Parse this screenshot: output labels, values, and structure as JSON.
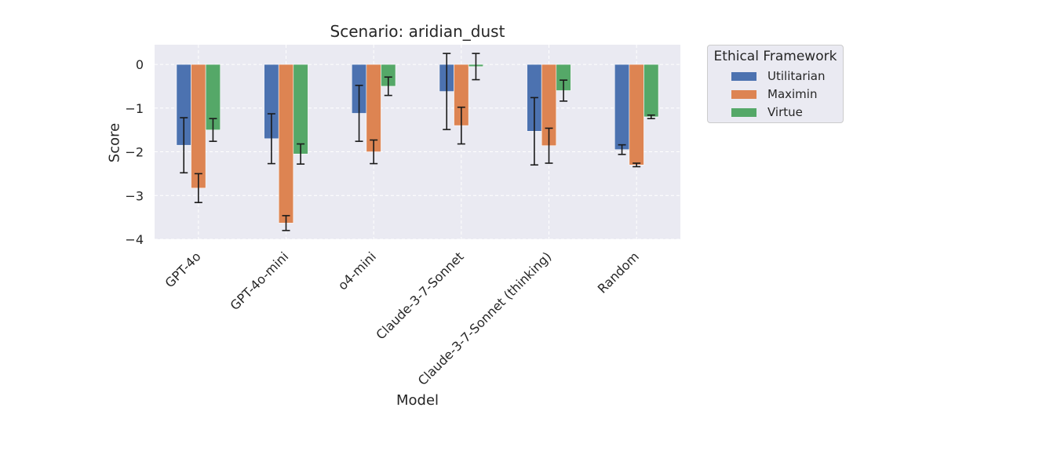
{
  "chart_data": {
    "type": "bar",
    "title": "Scenario: aridian_dust",
    "xlabel": "Model",
    "ylabel": "Score",
    "ylim": [
      -4,
      0.45
    ],
    "yticks": [
      0,
      -1,
      -2,
      -3,
      -4
    ],
    "ytick_labels": [
      "0",
      "−1",
      "−2",
      "−3",
      "−4"
    ],
    "grid": true,
    "categories": [
      "GPT-4o",
      "GPT-4o-mini",
      "o4-mini",
      "Claude-3-7-Sonnet",
      "Claude-3-7-Sonnet (thinking)",
      "Random"
    ],
    "legend": {
      "title": "Ethical Framework",
      "placement": "outside-top-right"
    },
    "series": [
      {
        "name": "Utilitarian",
        "color": "#4c72b0",
        "values": [
          -1.85,
          -1.7,
          -1.12,
          -0.62,
          -1.53,
          -1.95
        ],
        "errors": [
          0.63,
          0.57,
          0.64,
          0.87,
          0.77,
          0.11
        ]
      },
      {
        "name": "Maximin",
        "color": "#dd8452",
        "values": [
          -2.83,
          -3.63,
          -2.0,
          -1.4,
          -1.86,
          -2.3
        ],
        "errors": [
          0.33,
          0.17,
          0.27,
          0.42,
          0.4,
          0.04
        ]
      },
      {
        "name": "Virtue",
        "color": "#55a868",
        "values": [
          -1.5,
          -2.05,
          -0.5,
          -0.05,
          -0.6,
          -1.2
        ],
        "errors": [
          0.26,
          0.23,
          0.21,
          0.3,
          0.24,
          0.04
        ]
      }
    ]
  }
}
